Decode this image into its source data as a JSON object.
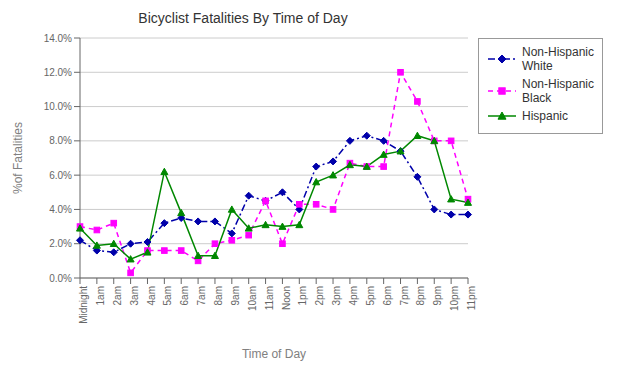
{
  "chart_data": {
    "type": "line",
    "title": "Bicyclist Fatalities By Time of Day",
    "x_label": "Time of  Day",
    "y_label": "%of  Fatalities",
    "categories": [
      "Midnight",
      "1am",
      "2am",
      "3am",
      "4am",
      "5am",
      "6am",
      "7am",
      "8am",
      "9am",
      "10am",
      "11am",
      "Noon",
      "1pm",
      "2pm",
      "3pm",
      "4pm",
      "5pm",
      "6pm",
      "7pm",
      "8pm",
      "9pm",
      "10pm",
      "11pm"
    ],
    "series": [
      {
        "name": "Non-Hispanic\nWhite",
        "color": "#0000aa",
        "line_style": "dashdot",
        "marker": "diamond",
        "values": [
          0.022,
          0.016,
          0.015,
          0.02,
          0.021,
          0.032,
          0.035,
          0.033,
          0.033,
          0.026,
          0.048,
          0.045,
          0.05,
          0.04,
          0.065,
          0.068,
          0.08,
          0.083,
          0.08,
          0.074,
          0.059,
          0.04,
          0.037,
          0.037
        ]
      },
      {
        "name": "Non-Hispanic\nBlack",
        "color": "#ff00ff",
        "line_style": "dashed",
        "marker": "square",
        "values": [
          0.03,
          0.028,
          0.032,
          0.003,
          0.016,
          0.016,
          0.016,
          0.01,
          0.02,
          0.022,
          0.025,
          0.045,
          0.02,
          0.043,
          0.043,
          0.04,
          0.067,
          0.065,
          0.065,
          0.12,
          0.103,
          0.08,
          0.08,
          0.046
        ]
      },
      {
        "name": "Hispanic",
        "color": "#008800",
        "line_style": "solid",
        "marker": "triangle",
        "values": [
          0.029,
          0.019,
          0.02,
          0.011,
          0.015,
          0.062,
          0.038,
          0.013,
          0.013,
          0.04,
          0.029,
          0.031,
          0.03,
          0.031,
          0.056,
          0.06,
          0.066,
          0.065,
          0.072,
          0.074,
          0.083,
          0.08,
          0.046,
          0.044
        ]
      }
    ],
    "ylim": [
      0.0,
      0.14
    ],
    "yticks": [
      {
        "value": 0.0,
        "label": "0.0%"
      },
      {
        "value": 0.02,
        "label": "2.0%"
      },
      {
        "value": 0.04,
        "label": "4.0%"
      },
      {
        "value": 0.06,
        "label": "6.0%"
      },
      {
        "value": 0.08,
        "label": "8.0%"
      },
      {
        "value": 0.1,
        "label": "10.0%"
      },
      {
        "value": 0.12,
        "label": "12.0%"
      },
      {
        "value": 0.14,
        "label": "14.0%"
      }
    ],
    "grid": true,
    "legend": "right"
  }
}
